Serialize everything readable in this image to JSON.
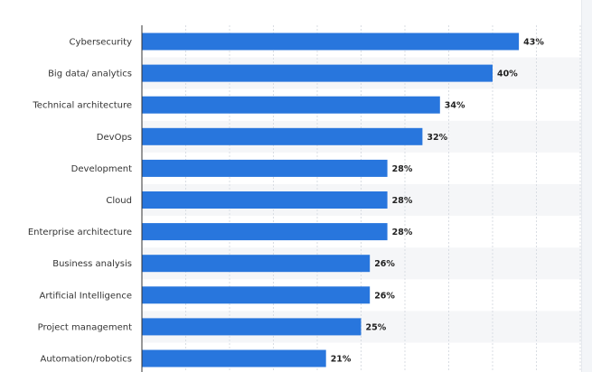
{
  "chart_data": {
    "type": "bar",
    "orientation": "horizontal",
    "categories": [
      "Cybersecurity",
      "Big data/ analytics",
      "Technical architecture",
      "DevOps",
      "Development",
      "Cloud",
      "Enterprise architecture",
      "Business analysis",
      "Artificial Intelligence",
      "Project management",
      "Automation/robotics"
    ],
    "values": [
      43,
      40,
      34,
      32,
      28,
      28,
      28,
      26,
      26,
      25,
      21
    ],
    "value_labels": [
      "43%",
      "40%",
      "34%",
      "32%",
      "28%",
      "28%",
      "28%",
      "26%",
      "26%",
      "25%",
      "21%"
    ],
    "unit": "%",
    "xlim": [
      0,
      50
    ],
    "grid": true,
    "bar_color": "#2876dd",
    "title": "",
    "xlabel": "",
    "ylabel": ""
  }
}
